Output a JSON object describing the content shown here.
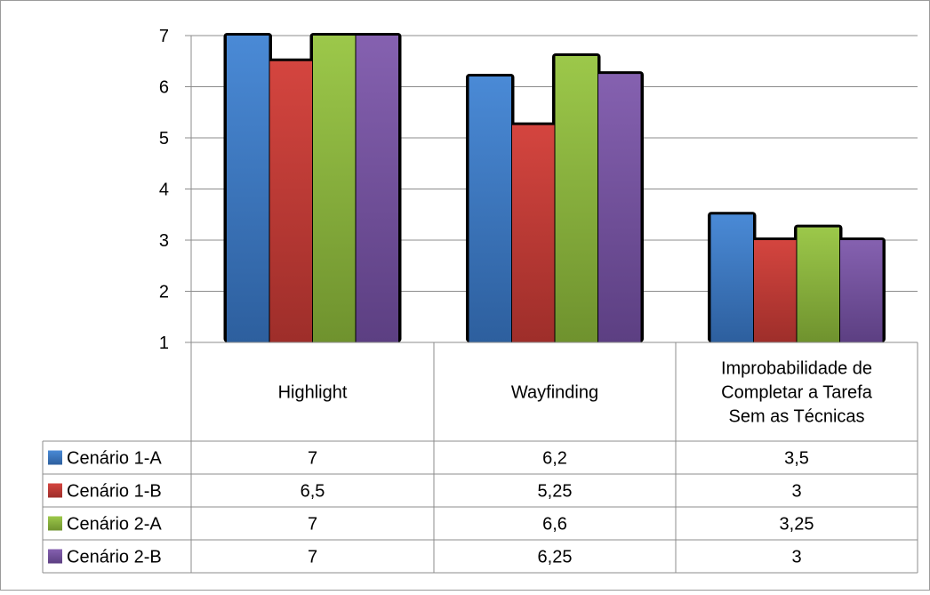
{
  "chart_data": {
    "type": "bar",
    "title": "",
    "xlabel": "",
    "ylabel": "",
    "ylim": [
      1,
      7
    ],
    "yticks": [
      1,
      2,
      3,
      4,
      5,
      6,
      7
    ],
    "grid": true,
    "legend": "data-table",
    "categories": [
      [
        "Highlight"
      ],
      [
        "Wayfinding"
      ],
      [
        "Improbabilidade de",
        "Completar a Tarefa",
        "Sem as Técnicas"
      ]
    ],
    "series": [
      {
        "name": "Cenário 1-A",
        "color": "#3c7cc6",
        "values": [
          7,
          6.2,
          3.5
        ],
        "labels": [
          "7",
          "6,2",
          "3,5"
        ]
      },
      {
        "name": "Cenário 1-B",
        "color": "#c63a36",
        "values": [
          6.5,
          5.25,
          3
        ],
        "labels": [
          "6,5",
          "5,25",
          "3"
        ]
      },
      {
        "name": "Cenário 2-A",
        "color": "#8ab43c",
        "values": [
          7,
          6.6,
          3.25
        ],
        "labels": [
          "7",
          "6,6",
          "3,25"
        ]
      },
      {
        "name": "Cenário 2-B",
        "color": "#7753a2",
        "values": [
          7,
          6.25,
          3
        ],
        "labels": [
          "7",
          "6,25",
          "3"
        ]
      }
    ]
  }
}
